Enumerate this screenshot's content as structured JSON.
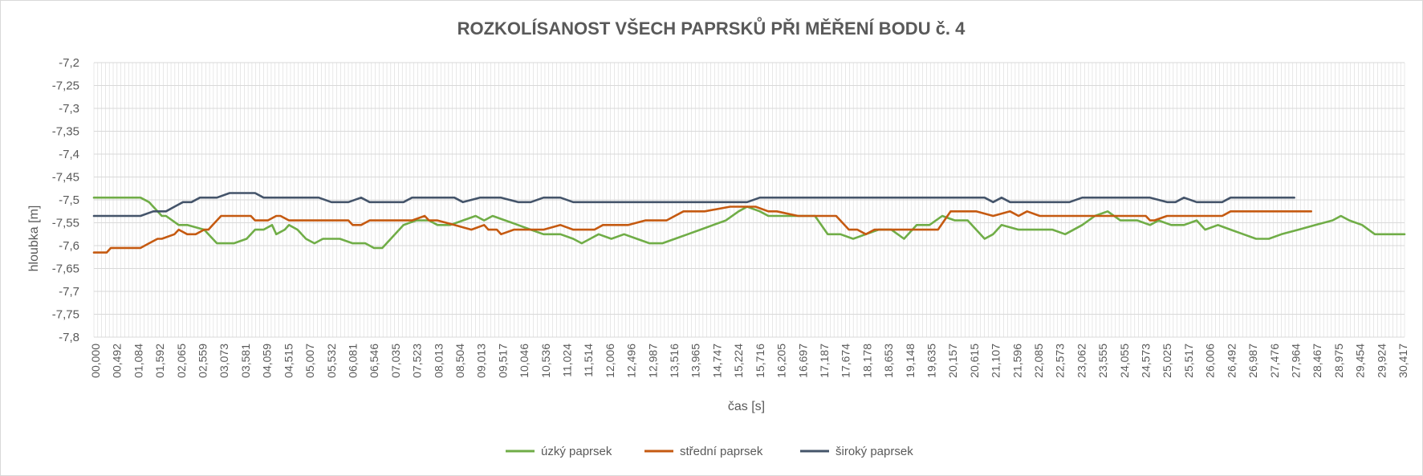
{
  "chart_data": {
    "type": "line",
    "title": "ROZKOLÍSANOST VŠECH PAPRSKŮ PŘI MĚŘENÍ BODU č. 4",
    "xlabel": "čas [s]",
    "ylabel": "hloubka [m]",
    "ylim": [
      -7.8,
      -7.2
    ],
    "yticks": [
      "-7,2",
      "-7,25",
      "-7,3",
      "-7,35",
      "-7,4",
      "-7,45",
      "-7,5",
      "-7,55",
      "-7,6",
      "-7,65",
      "-7,7",
      "-7,75",
      "-7,8"
    ],
    "xlim": [
      0,
      30.9
    ],
    "xticks": [
      "00,000",
      "00,492",
      "01,084",
      "01,592",
      "02,065",
      "02,559",
      "03,073",
      "03,581",
      "04,059",
      "04,515",
      "05,007",
      "05,532",
      "06,081",
      "06,546",
      "07,035",
      "07,523",
      "08,013",
      "08,504",
      "09,013",
      "09,517",
      "10,046",
      "10,536",
      "11,024",
      "11,514",
      "12,006",
      "12,496",
      "12,987",
      "13,516",
      "13,965",
      "14,747",
      "15,224",
      "15,716",
      "16,205",
      "16,697",
      "17,187",
      "17,674",
      "18,178",
      "18,653",
      "19,148",
      "19,635",
      "20,157",
      "20,615",
      "21,107",
      "21,596",
      "22,085",
      "22,573",
      "23,062",
      "23,555",
      "24,055",
      "24,573",
      "25,025",
      "25,517",
      "26,006",
      "26,492",
      "26,987",
      "27,476",
      "27,964",
      "28,467",
      "28,975",
      "29,454",
      "29,924",
      "30,417"
    ],
    "grid": true,
    "legend_position": "bottom",
    "series": [
      {
        "name": "úzký paprsek",
        "color": "#70ad47",
        "x": [
          0.0,
          1.1,
          1.3,
          1.5,
          1.6,
          1.7,
          2.0,
          2.2,
          2.6,
          2.9,
          3.1,
          3.3,
          3.6,
          3.8,
          4.0,
          4.2,
          4.3,
          4.5,
          4.6,
          4.8,
          5.0,
          5.2,
          5.4,
          5.6,
          5.8,
          6.1,
          6.4,
          6.6,
          6.8,
          7.0,
          7.3,
          7.6,
          7.9,
          8.1,
          8.4,
          8.7,
          9.0,
          9.2,
          9.4,
          9.7,
          10.0,
          10.3,
          10.6,
          11.0,
          11.3,
          11.5,
          11.7,
          11.9,
          12.2,
          12.5,
          12.8,
          13.1,
          13.4,
          13.7,
          14.0,
          14.3,
          14.6,
          14.9,
          15.2,
          15.4,
          15.7,
          15.9,
          16.2,
          16.6,
          17.0,
          17.3,
          17.6,
          17.9,
          18.2,
          18.5,
          18.8,
          19.1,
          19.4,
          19.7,
          20.0,
          20.3,
          20.6,
          21.0,
          21.2,
          21.4,
          21.8,
          22.2,
          22.6,
          22.9,
          23.3,
          23.6,
          23.9,
          24.2,
          24.6,
          24.9,
          25.1,
          25.4,
          25.7,
          26.0,
          26.2,
          26.5,
          26.8,
          27.1,
          27.4,
          27.7,
          28.0,
          28.4,
          28.8,
          29.2,
          29.4,
          29.6,
          29.9,
          30.2,
          30.9
        ],
        "y": [
          -7.495,
          -7.495,
          -7.505,
          -7.525,
          -7.535,
          -7.535,
          -7.555,
          -7.555,
          -7.565,
          -7.595,
          -7.595,
          -7.595,
          -7.585,
          -7.565,
          -7.565,
          -7.555,
          -7.575,
          -7.565,
          -7.555,
          -7.565,
          -7.585,
          -7.595,
          -7.585,
          -7.585,
          -7.585,
          -7.595,
          -7.595,
          -7.605,
          -7.605,
          -7.585,
          -7.555,
          -7.545,
          -7.545,
          -7.555,
          -7.555,
          -7.545,
          -7.535,
          -7.545,
          -7.535,
          -7.545,
          -7.555,
          -7.565,
          -7.575,
          -7.575,
          -7.585,
          -7.595,
          -7.585,
          -7.575,
          -7.585,
          -7.575,
          -7.585,
          -7.595,
          -7.595,
          -7.585,
          -7.575,
          -7.565,
          -7.555,
          -7.545,
          -7.525,
          -7.515,
          -7.525,
          -7.535,
          -7.535,
          -7.535,
          -7.535,
          -7.575,
          -7.575,
          -7.585,
          -7.575,
          -7.565,
          -7.565,
          -7.585,
          -7.555,
          -7.555,
          -7.535,
          -7.545,
          -7.545,
          -7.585,
          -7.575,
          -7.555,
          -7.565,
          -7.565,
          -7.565,
          -7.575,
          -7.555,
          -7.535,
          -7.525,
          -7.545,
          -7.545,
          -7.555,
          -7.545,
          -7.555,
          -7.555,
          -7.545,
          -7.565,
          -7.555,
          -7.565,
          -7.575,
          -7.585,
          -7.585,
          -7.575,
          -7.565,
          -7.555,
          -7.545,
          -7.535,
          -7.545,
          -7.555,
          -7.575,
          -7.575
        ]
      },
      {
        "name": "střední paprsek",
        "color": "#c55a11",
        "x": [
          0.0,
          0.3,
          0.4,
          0.5,
          0.9,
          1.1,
          1.3,
          1.5,
          1.6,
          1.9,
          2.0,
          2.2,
          2.4,
          2.6,
          2.7,
          2.8,
          3.0,
          3.4,
          3.7,
          3.8,
          4.1,
          4.3,
          4.4,
          4.6,
          5.0,
          5.5,
          5.8,
          6.0,
          6.1,
          6.3,
          6.5,
          7.0,
          7.5,
          7.8,
          7.9,
          8.1,
          8.5,
          8.9,
          9.2,
          9.3,
          9.5,
          9.6,
          9.9,
          10.0,
          10.3,
          10.6,
          11.0,
          11.3,
          11.5,
          11.8,
          12.0,
          12.6,
          13.0,
          13.3,
          13.5,
          13.9,
          14.4,
          15.0,
          15.2,
          15.6,
          15.9,
          16.1,
          16.6,
          17.0,
          17.5,
          17.8,
          18.0,
          18.2,
          18.4,
          18.6,
          19.0,
          19.6,
          19.9,
          20.2,
          20.5,
          20.8,
          21.2,
          21.6,
          21.8,
          22.0,
          22.3,
          22.6,
          22.8,
          23.1,
          23.5,
          23.8,
          24.3,
          24.8,
          24.9,
          25.0,
          25.3,
          26.0,
          26.6,
          26.8,
          27.2,
          27.6,
          28.2,
          28.7
        ],
        "y": [
          -7.615,
          -7.615,
          -7.605,
          -7.605,
          -7.605,
          -7.605,
          -7.595,
          -7.585,
          -7.585,
          -7.575,
          -7.565,
          -7.575,
          -7.575,
          -7.565,
          -7.565,
          -7.555,
          -7.535,
          -7.535,
          -7.535,
          -7.545,
          -7.545,
          -7.535,
          -7.535,
          -7.545,
          -7.545,
          -7.545,
          -7.545,
          -7.545,
          -7.555,
          -7.555,
          -7.545,
          -7.545,
          -7.545,
          -7.535,
          -7.545,
          -7.545,
          -7.555,
          -7.565,
          -7.555,
          -7.565,
          -7.565,
          -7.575,
          -7.565,
          -7.565,
          -7.565,
          -7.565,
          -7.555,
          -7.565,
          -7.565,
          -7.565,
          -7.555,
          -7.555,
          -7.545,
          -7.545,
          -7.545,
          -7.525,
          -7.525,
          -7.515,
          -7.515,
          -7.515,
          -7.525,
          -7.525,
          -7.535,
          -7.535,
          -7.535,
          -7.565,
          -7.565,
          -7.575,
          -7.565,
          -7.565,
          -7.565,
          -7.565,
          -7.565,
          -7.525,
          -7.525,
          -7.525,
          -7.535,
          -7.525,
          -7.535,
          -7.525,
          -7.535,
          -7.535,
          -7.535,
          -7.535,
          -7.535,
          -7.535,
          -7.535,
          -7.535,
          -7.545,
          -7.545,
          -7.535,
          -7.535,
          -7.535,
          -7.525,
          -7.525,
          -7.525,
          -7.525,
          -7.525
        ]
      },
      {
        "name": "široký paprsek",
        "color": "#44546a",
        "x": [
          0.0,
          0.9,
          1.1,
          1.4,
          1.6,
          1.7,
          1.9,
          2.1,
          2.3,
          2.5,
          2.9,
          3.2,
          3.6,
          3.8,
          4.0,
          4.3,
          4.8,
          5.3,
          5.6,
          5.8,
          6.0,
          6.3,
          6.5,
          6.7,
          7.0,
          7.3,
          7.5,
          7.8,
          8.1,
          8.5,
          8.7,
          9.1,
          9.6,
          10.0,
          10.3,
          10.6,
          11.0,
          11.3,
          11.6,
          12.0,
          12.5,
          13.0,
          13.5,
          14.0,
          14.5,
          15.0,
          15.4,
          15.7,
          16.0,
          16.5,
          17.0,
          17.3,
          17.6,
          18.0,
          18.5,
          19.0,
          19.5,
          20.0,
          20.5,
          21.0,
          21.2,
          21.4,
          21.6,
          22.0,
          22.5,
          22.8,
          23.0,
          23.3,
          24.0,
          24.5,
          24.9,
          25.3,
          25.5,
          25.7,
          26.0,
          26.2,
          26.4,
          26.6,
          26.8,
          27.0,
          27.5,
          28.0,
          28.3
        ],
        "y": [
          -7.535,
          -7.535,
          -7.535,
          -7.525,
          -7.525,
          -7.525,
          -7.515,
          -7.505,
          -7.505,
          -7.495,
          -7.495,
          -7.485,
          -7.485,
          -7.485,
          -7.495,
          -7.495,
          -7.495,
          -7.495,
          -7.505,
          -7.505,
          -7.505,
          -7.495,
          -7.505,
          -7.505,
          -7.505,
          -7.505,
          -7.495,
          -7.495,
          -7.495,
          -7.495,
          -7.505,
          -7.495,
          -7.495,
          -7.505,
          -7.505,
          -7.495,
          -7.495,
          -7.505,
          -7.505,
          -7.505,
          -7.505,
          -7.505,
          -7.505,
          -7.505,
          -7.505,
          -7.505,
          -7.505,
          -7.495,
          -7.495,
          -7.495,
          -7.495,
          -7.495,
          -7.495,
          -7.495,
          -7.495,
          -7.495,
          -7.495,
          -7.495,
          -7.495,
          -7.495,
          -7.505,
          -7.495,
          -7.505,
          -7.505,
          -7.505,
          -7.505,
          -7.505,
          -7.495,
          -7.495,
          -7.495,
          -7.495,
          -7.505,
          -7.505,
          -7.495,
          -7.505,
          -7.505,
          -7.505,
          -7.505,
          -7.495,
          -7.495,
          -7.495,
          -7.495,
          -7.495
        ]
      }
    ]
  }
}
